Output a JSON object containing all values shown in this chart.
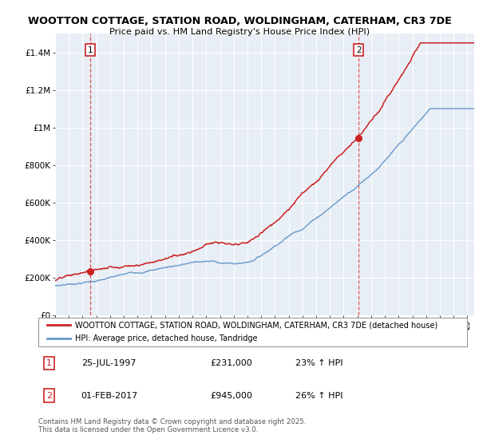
{
  "title1": "WOOTTON COTTAGE, STATION ROAD, WOLDINGHAM, CATERHAM, CR3 7DE",
  "title2": "Price paid vs. HM Land Registry's House Price Index (HPI)",
  "legend_line1": "WOOTTON COTTAGE, STATION ROAD, WOLDINGHAM, CATERHAM, CR3 7DE (detached house)",
  "legend_line2": "HPI: Average price, detached house, Tandridge",
  "annotation1_label": "1",
  "annotation1_date": "25-JUL-1997",
  "annotation1_price": "£231,000",
  "annotation1_hpi": "23% ↑ HPI",
  "annotation2_label": "2",
  "annotation2_date": "01-FEB-2017",
  "annotation2_price": "£945,000",
  "annotation2_hpi": "26% ↑ HPI",
  "footnote": "Contains HM Land Registry data © Crown copyright and database right 2025.\nThis data is licensed under the Open Government Licence v3.0.",
  "red_color": "#cc2222",
  "blue_color": "#6699cc",
  "background_color": "#e8eef5",
  "ylim": [
    0,
    1500000
  ],
  "yticks": [
    0,
    200000,
    400000,
    600000,
    800000,
    1000000,
    1200000,
    1400000
  ],
  "ytick_labels": [
    "£0",
    "£200K",
    "£400K",
    "£600K",
    "£800K",
    "£1M",
    "£1.2M",
    "£1.4M"
  ],
  "marker1_x": 1997.57,
  "marker1_y": 231000,
  "marker2_x": 2017.08,
  "marker2_y": 945000,
  "xmin": 1995.0,
  "xmax": 2025.5
}
